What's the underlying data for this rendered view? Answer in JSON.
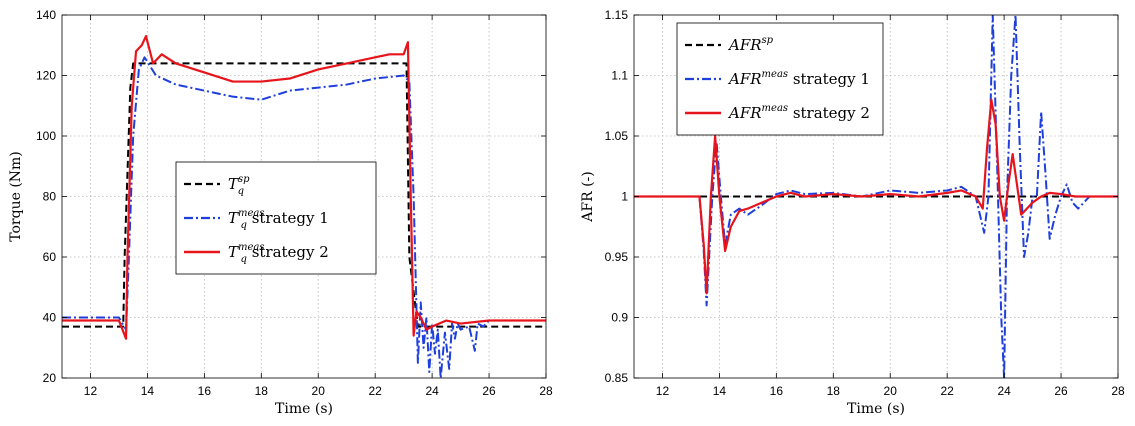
{
  "chart_data": [
    {
      "type": "line",
      "xlabel": "Time (s)",
      "ylabel": "Torque (Nm)",
      "xlim": [
        11,
        28
      ],
      "ylim": [
        20,
        140
      ],
      "xticks": [
        12,
        14,
        16,
        18,
        20,
        22,
        24,
        26,
        28
      ],
      "yticks": [
        20,
        40,
        60,
        80,
        100,
        120,
        140
      ],
      "grid": true,
      "legend_position": "center-right",
      "legend": [
        {
          "base": "T",
          "sub": "q",
          "sup": "sp",
          "suffix": ""
        },
        {
          "base": "T",
          "sub": "q",
          "sup": "meas",
          "suffix": " strategy 1"
        },
        {
          "base": "T",
          "sub": "q",
          "sup": "meas",
          "suffix": " strategy 2"
        }
      ],
      "series": [
        {
          "name": "Tq sp",
          "color": "#000000",
          "style": "dashed",
          "x": [
            11,
            13.15,
            13.2,
            13.4,
            13.5,
            23.1,
            23.2,
            23.5,
            28
          ],
          "y": [
            37,
            37,
            60,
            116,
            124,
            124,
            60,
            37,
            37
          ]
        },
        {
          "name": "Tq meas strategy 1",
          "color": "#1f3fdc",
          "style": "dashdot",
          "x": [
            11,
            12,
            13,
            13.25,
            13.35,
            13.5,
            13.7,
            13.9,
            14.3,
            15,
            16,
            17,
            18,
            19,
            20,
            21,
            22,
            23,
            23.2,
            23.35,
            23.5,
            23.6,
            23.7,
            23.8,
            23.9,
            24,
            24.1,
            24.2,
            24.3,
            24.45,
            24.6,
            24.7,
            24.8,
            24.9,
            25,
            25.3,
            25.5,
            25.6,
            25.8,
            26,
            27,
            28
          ],
          "y": [
            40,
            40,
            40,
            36,
            60,
            100,
            122,
            126,
            120,
            117,
            115,
            113,
            112,
            115,
            116,
            117,
            119,
            120,
            118,
            80,
            25,
            45,
            30,
            40,
            22,
            38,
            28,
            36,
            20,
            35,
            23,
            38,
            33,
            38,
            36,
            37,
            29,
            38,
            37,
            39,
            39,
            39
          ]
        },
        {
          "name": "Tq meas strategy 2",
          "color": "#e8141c",
          "style": "solid",
          "x": [
            11,
            12,
            13,
            13.25,
            13.3,
            13.45,
            13.6,
            13.8,
            13.95,
            14.2,
            14.5,
            15,
            16,
            17,
            18,
            19,
            20,
            21,
            22,
            22.5,
            23,
            23.15,
            23.25,
            23.35,
            23.45,
            23.6,
            23.8,
            24,
            24.5,
            25,
            26,
            27,
            28
          ],
          "y": [
            39,
            39,
            39,
            33,
            60,
            110,
            128,
            130,
            133,
            124,
            127,
            124,
            121,
            118,
            118,
            119,
            122,
            124,
            126,
            127,
            127,
            131,
            80,
            34,
            42,
            40,
            36,
            37,
            39,
            38,
            39,
            39,
            39
          ]
        }
      ]
    },
    {
      "type": "line",
      "xlabel": "Time (s)",
      "ylabel": "AFR (-)",
      "xlim": [
        11,
        28
      ],
      "ylim": [
        0.85,
        1.15
      ],
      "xticks": [
        12,
        14,
        16,
        18,
        20,
        22,
        24,
        26,
        28
      ],
      "yticks": [
        0.85,
        0.9,
        0.95,
        1,
        1.05,
        1.1,
        1.15
      ],
      "ytick_labels": [
        "0.85",
        "0.9",
        "0.95",
        "1",
        "1.05",
        "1.1",
        "1.15"
      ],
      "grid": true,
      "legend_position": "top-left",
      "legend": [
        {
          "base": "AFR",
          "sub": "",
          "sup": "sp",
          "suffix": ""
        },
        {
          "base": "AFR",
          "sub": "",
          "sup": "meas",
          "suffix": " strategy 1"
        },
        {
          "base": "AFR",
          "sub": "",
          "sup": "meas",
          "suffix": " strategy 2"
        }
      ],
      "series": [
        {
          "name": "AFR sp",
          "color": "#000000",
          "style": "dashed",
          "x": [
            11,
            28
          ],
          "y": [
            1.0,
            1.0
          ]
        },
        {
          "name": "AFR meas strategy 1",
          "color": "#1f3fdc",
          "style": "dashdot",
          "x": [
            11,
            13,
            13.3,
            13.45,
            13.55,
            13.75,
            13.9,
            14.05,
            14.2,
            14.4,
            14.7,
            15,
            15.5,
            16,
            16.5,
            17,
            18,
            19,
            20,
            21,
            22,
            22.5,
            23,
            23.3,
            23.45,
            23.6,
            23.75,
            23.9,
            24.0,
            24.1,
            24.25,
            24.4,
            24.55,
            24.7,
            24.85,
            25.0,
            25.15,
            25.3,
            25.45,
            25.6,
            25.8,
            26,
            26.2,
            26.4,
            26.6,
            27,
            27.5,
            28
          ],
          "y": [
            1.0,
            1.0,
            1.0,
            0.955,
            0.91,
            1.0,
            1.045,
            1.0,
            0.96,
            0.985,
            0.99,
            0.985,
            0.993,
            1.002,
            1.005,
            1.002,
            1.003,
            1.0,
            1.005,
            1.003,
            1.005,
            1.008,
            1.0,
            0.97,
            1.0,
            1.15,
            1.03,
            0.9,
            0.85,
            1.0,
            1.1,
            1.15,
            1.04,
            0.95,
            0.97,
            1.0,
            1.0,
            1.07,
            1.02,
            0.965,
            0.985,
            1.0,
            1.01,
            0.995,
            0.99,
            1.0,
            1.0,
            1.0
          ]
        },
        {
          "name": "AFR meas strategy 2",
          "color": "#e8141c",
          "style": "solid",
          "x": [
            11,
            13,
            13.3,
            13.45,
            13.55,
            13.7,
            13.85,
            14.0,
            14.2,
            14.4,
            14.7,
            15,
            15.5,
            16,
            16.5,
            17,
            18,
            19,
            20,
            21,
            22,
            22.5,
            23,
            23.25,
            23.4,
            23.55,
            23.7,
            23.85,
            24.0,
            24.15,
            24.3,
            24.45,
            24.6,
            24.8,
            25,
            25.3,
            25.6,
            26,
            26.5,
            27,
            27.5,
            28
          ],
          "y": [
            1.0,
            1.0,
            1.0,
            0.96,
            0.92,
            1.0,
            1.05,
            1.0,
            0.955,
            0.975,
            0.988,
            0.99,
            0.995,
            1.0,
            1.003,
            1.0,
            1.002,
            1.0,
            1.002,
            1.0,
            1.003,
            1.005,
            1.0,
            0.99,
            1.04,
            1.08,
            1.06,
            1.0,
            0.98,
            1.01,
            1.035,
            1.01,
            0.985,
            0.99,
            0.995,
            1.0,
            1.003,
            1.002,
            1.0,
            1.0,
            1.0,
            1.0
          ]
        }
      ]
    }
  ]
}
